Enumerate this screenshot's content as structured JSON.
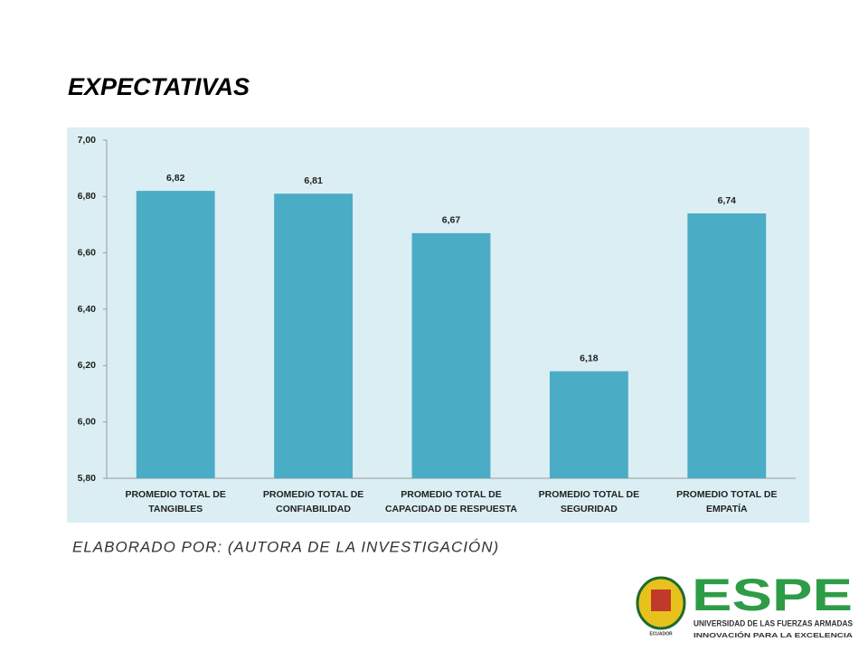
{
  "chart_data": {
    "type": "bar",
    "title": "EXPECTATIVAS",
    "categories": [
      "PROMEDIO TOTAL DE TANGIBLES",
      "PROMEDIO TOTAL DE CONFIABILIDAD",
      "PROMEDIO TOTAL DE CAPACIDAD DE RESPUESTA",
      "PROMEDIO TOTAL DE SEGURIDAD",
      "PROMEDIO TOTAL DE EMPATÍA"
    ],
    "values": [
      6.82,
      6.81,
      6.67,
      6.18,
      6.74
    ],
    "value_labels": [
      "6,82",
      "6,81",
      "6,67",
      "6,18",
      "6,74"
    ],
    "color": "#4bacc6",
    "ylim": [
      5.8,
      7.0
    ],
    "yticks": [
      {
        "value": 5.8,
        "label": "5,80"
      },
      {
        "value": 6.0,
        "label": "6,00"
      },
      {
        "value": 6.2,
        "label": "6,20"
      },
      {
        "value": 6.4,
        "label": "6,40"
      },
      {
        "value": 6.6,
        "label": "6,60"
      },
      {
        "value": 6.8,
        "label": "6,80"
      },
      {
        "value": 7.0,
        "label": "7,00"
      }
    ],
    "grid": false,
    "source": "ELABORADO POR: (AUTORA DE LA INVESTIGACIÓN)"
  },
  "logo": {
    "name": "ESPE",
    "line1": "UNIVERSIDAD DE LAS FUERZAS ARMADAS",
    "line2": "INNOVACIÓN PARA LA EXCELENCIA",
    "emblem": "ECUADOR"
  }
}
